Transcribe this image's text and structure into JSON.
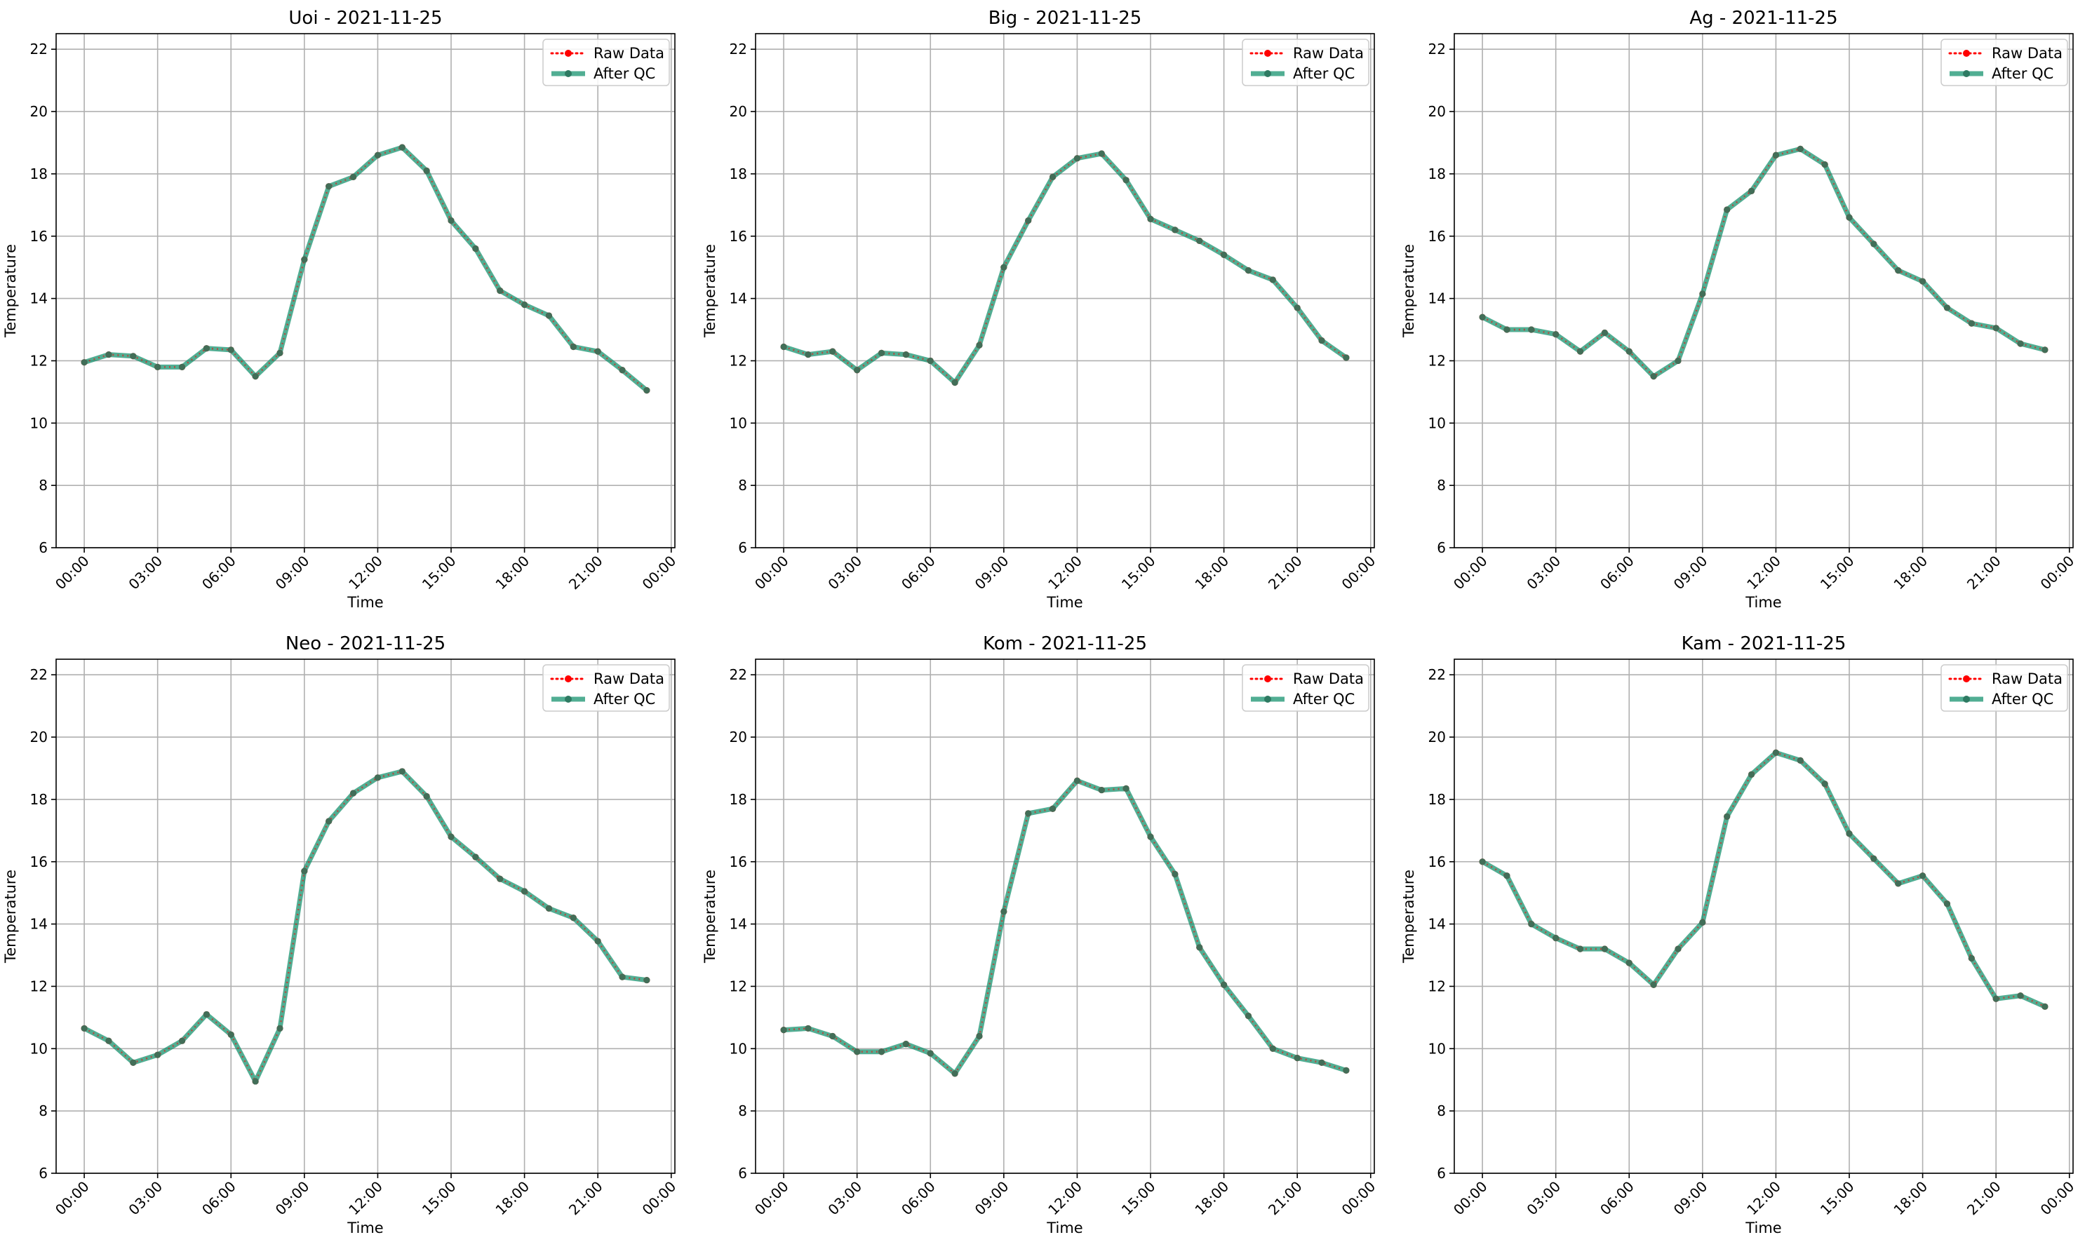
{
  "legend": {
    "raw_label": "Raw Data",
    "qc_label": "After QC"
  },
  "colors": {
    "raw": "#ff0000",
    "qc": "#0e8f6a",
    "qc_marker": "#2e7a62"
  },
  "chart_data": [
    {
      "type": "line",
      "title": "Uoi - 2021-11-25",
      "xlabel": "Time",
      "ylabel": "Temperature",
      "ylim": [
        6,
        22.5
      ],
      "yticks": [
        "6",
        "8",
        "10",
        "12",
        "14",
        "16",
        "18",
        "20",
        "22"
      ],
      "xticks": [
        "00:00",
        "03:00",
        "06:00",
        "09:00",
        "12:00",
        "15:00",
        "18:00",
        "21:00",
        "00:00"
      ],
      "x_hours": [
        0,
        1,
        2,
        3,
        4,
        5,
        6,
        7,
        8,
        9,
        10,
        11,
        12,
        13,
        14,
        15,
        16,
        17,
        18,
        19,
        20,
        21,
        22,
        23
      ],
      "grid": true,
      "legend_position": "top-right",
      "series": [
        {
          "name": "Raw Data",
          "values": [
            11.95,
            12.2,
            12.15,
            11.8,
            11.8,
            12.4,
            12.35,
            11.5,
            12.25,
            15.25,
            17.6,
            17.9,
            18.6,
            18.85,
            18.1,
            16.5,
            15.6,
            14.25,
            13.8,
            13.45,
            12.45,
            12.3,
            11.7,
            11.05
          ]
        },
        {
          "name": "After QC",
          "values": [
            11.95,
            12.2,
            12.15,
            11.8,
            11.8,
            12.4,
            12.35,
            11.5,
            12.25,
            15.25,
            17.6,
            17.9,
            18.6,
            18.85,
            18.1,
            16.5,
            15.6,
            14.25,
            13.8,
            13.45,
            12.45,
            12.3,
            11.7,
            11.05
          ]
        }
      ]
    },
    {
      "type": "line",
      "title": "Big - 2021-11-25",
      "xlabel": "Time",
      "ylabel": "Temperature",
      "ylim": [
        6,
        22.5
      ],
      "yticks": [
        "6",
        "8",
        "10",
        "12",
        "14",
        "16",
        "18",
        "20",
        "22"
      ],
      "xticks": [
        "00:00",
        "03:00",
        "06:00",
        "09:00",
        "12:00",
        "15:00",
        "18:00",
        "21:00",
        "00:00"
      ],
      "x_hours": [
        0,
        1,
        2,
        3,
        4,
        5,
        6,
        7,
        8,
        9,
        10,
        11,
        12,
        13,
        14,
        15,
        16,
        17,
        18,
        19,
        20,
        21,
        22,
        23
      ],
      "grid": true,
      "legend_position": "top-right",
      "series": [
        {
          "name": "Raw Data",
          "values": [
            12.45,
            12.2,
            12.3,
            11.7,
            12.25,
            12.2,
            12.0,
            11.3,
            12.5,
            15.0,
            16.5,
            17.9,
            18.5,
            18.65,
            17.8,
            16.55,
            16.2,
            15.85,
            15.4,
            14.9,
            14.6,
            13.7,
            12.65,
            12.1
          ]
        },
        {
          "name": "After QC",
          "values": [
            12.45,
            12.2,
            12.3,
            11.7,
            12.25,
            12.2,
            12.0,
            11.3,
            12.5,
            15.0,
            16.5,
            17.9,
            18.5,
            18.65,
            17.8,
            16.55,
            16.2,
            15.85,
            15.4,
            14.9,
            14.6,
            13.7,
            12.65,
            12.1
          ]
        }
      ]
    },
    {
      "type": "line",
      "title": "Ag - 2021-11-25",
      "xlabel": "Time",
      "ylabel": "Temperature",
      "ylim": [
        6,
        22.5
      ],
      "yticks": [
        "6",
        "8",
        "10",
        "12",
        "14",
        "16",
        "18",
        "20",
        "22"
      ],
      "xticks": [
        "00:00",
        "03:00",
        "06:00",
        "09:00",
        "12:00",
        "15:00",
        "18:00",
        "21:00",
        "00:00"
      ],
      "x_hours": [
        0,
        1,
        2,
        3,
        4,
        5,
        6,
        7,
        8,
        9,
        10,
        11,
        12,
        13,
        14,
        15,
        16,
        17,
        18,
        19,
        20,
        21,
        22,
        23
      ],
      "grid": true,
      "legend_position": "top-right",
      "series": [
        {
          "name": "Raw Data",
          "values": [
            13.4,
            13.0,
            13.0,
            12.85,
            12.3,
            12.9,
            12.3,
            11.5,
            12.0,
            14.15,
            16.85,
            17.45,
            18.6,
            18.8,
            18.3,
            16.6,
            15.75,
            14.9,
            14.55,
            13.7,
            13.2,
            13.05,
            12.55,
            12.35
          ]
        },
        {
          "name": "After QC",
          "values": [
            13.4,
            13.0,
            13.0,
            12.85,
            12.3,
            12.9,
            12.3,
            11.5,
            12.0,
            14.15,
            16.85,
            17.45,
            18.6,
            18.8,
            18.3,
            16.6,
            15.75,
            14.9,
            14.55,
            13.7,
            13.2,
            13.05,
            12.55,
            12.35
          ]
        }
      ]
    },
    {
      "type": "line",
      "title": "Neo - 2021-11-25",
      "xlabel": "Time",
      "ylabel": "Temperature",
      "ylim": [
        6,
        22.5
      ],
      "yticks": [
        "6",
        "8",
        "10",
        "12",
        "14",
        "16",
        "18",
        "20",
        "22"
      ],
      "xticks": [
        "00:00",
        "03:00",
        "06:00",
        "09:00",
        "12:00",
        "15:00",
        "18:00",
        "21:00",
        "00:00"
      ],
      "x_hours": [
        0,
        1,
        2,
        3,
        4,
        5,
        6,
        7,
        8,
        9,
        10,
        11,
        12,
        13,
        14,
        15,
        16,
        17,
        18,
        19,
        20,
        21,
        22,
        23
      ],
      "grid": true,
      "legend_position": "top-right",
      "series": [
        {
          "name": "Raw Data",
          "values": [
            10.65,
            10.25,
            9.55,
            9.8,
            10.25,
            11.1,
            10.45,
            8.95,
            10.65,
            15.7,
            17.3,
            18.2,
            18.7,
            18.9,
            18.1,
            16.8,
            16.15,
            15.45,
            15.05,
            14.5,
            14.2,
            13.45,
            12.3,
            12.2
          ]
        },
        {
          "name": "After QC",
          "values": [
            10.65,
            10.25,
            9.55,
            9.8,
            10.25,
            11.1,
            10.45,
            8.95,
            10.65,
            15.7,
            17.3,
            18.2,
            18.7,
            18.9,
            18.1,
            16.8,
            16.15,
            15.45,
            15.05,
            14.5,
            14.2,
            13.45,
            12.3,
            12.2
          ]
        }
      ]
    },
    {
      "type": "line",
      "title": "Kom - 2021-11-25",
      "xlabel": "Time",
      "ylabel": "Temperature",
      "ylim": [
        6,
        22.5
      ],
      "yticks": [
        "6",
        "8",
        "10",
        "12",
        "14",
        "16",
        "18",
        "20",
        "22"
      ],
      "xticks": [
        "00:00",
        "03:00",
        "06:00",
        "09:00",
        "12:00",
        "15:00",
        "18:00",
        "21:00",
        "00:00"
      ],
      "x_hours": [
        0,
        1,
        2,
        3,
        4,
        5,
        6,
        7,
        8,
        9,
        10,
        11,
        12,
        13,
        14,
        15,
        16,
        17,
        18,
        19,
        20,
        21,
        22,
        23
      ],
      "grid": true,
      "legend_position": "top-right",
      "series": [
        {
          "name": "Raw Data",
          "values": [
            10.6,
            10.65,
            10.4,
            9.9,
            9.9,
            10.15,
            9.85,
            9.2,
            10.4,
            14.4,
            17.55,
            17.7,
            18.6,
            18.3,
            18.35,
            16.8,
            15.6,
            13.25,
            12.05,
            11.05,
            10.0,
            9.7,
            9.55,
            9.3
          ]
        },
        {
          "name": "After QC",
          "values": [
            10.6,
            10.65,
            10.4,
            9.9,
            9.9,
            10.15,
            9.85,
            9.2,
            10.4,
            14.4,
            17.55,
            17.7,
            18.6,
            18.3,
            18.35,
            16.8,
            15.6,
            13.25,
            12.05,
            11.05,
            10.0,
            9.7,
            9.55,
            9.3
          ]
        }
      ]
    },
    {
      "type": "line",
      "title": "Kam - 2021-11-25",
      "xlabel": "Time",
      "ylabel": "Temperature",
      "ylim": [
        6,
        22.5
      ],
      "yticks": [
        "6",
        "8",
        "10",
        "12",
        "14",
        "16",
        "18",
        "20",
        "22"
      ],
      "xticks": [
        "00:00",
        "03:00",
        "06:00",
        "09:00",
        "12:00",
        "15:00",
        "18:00",
        "21:00",
        "00:00"
      ],
      "x_hours": [
        0,
        1,
        2,
        3,
        4,
        5,
        6,
        7,
        8,
        9,
        10,
        11,
        12,
        13,
        14,
        15,
        16,
        17,
        18,
        19,
        20,
        21,
        22,
        23
      ],
      "grid": true,
      "legend_position": "top-right",
      "series": [
        {
          "name": "Raw Data",
          "values": [
            16.0,
            15.55,
            14.0,
            13.55,
            13.2,
            13.2,
            12.75,
            12.05,
            13.2,
            14.05,
            17.45,
            18.8,
            19.5,
            19.25,
            18.5,
            16.9,
            16.1,
            15.3,
            15.55,
            14.65,
            12.9,
            11.6,
            11.7,
            11.35
          ]
        },
        {
          "name": "After QC",
          "values": [
            16.0,
            15.55,
            14.0,
            13.55,
            13.2,
            13.2,
            12.75,
            12.05,
            13.2,
            14.05,
            17.45,
            18.8,
            19.5,
            19.25,
            18.5,
            16.9,
            16.1,
            15.3,
            15.55,
            14.65,
            12.9,
            11.6,
            11.7,
            11.35
          ]
        }
      ]
    }
  ]
}
